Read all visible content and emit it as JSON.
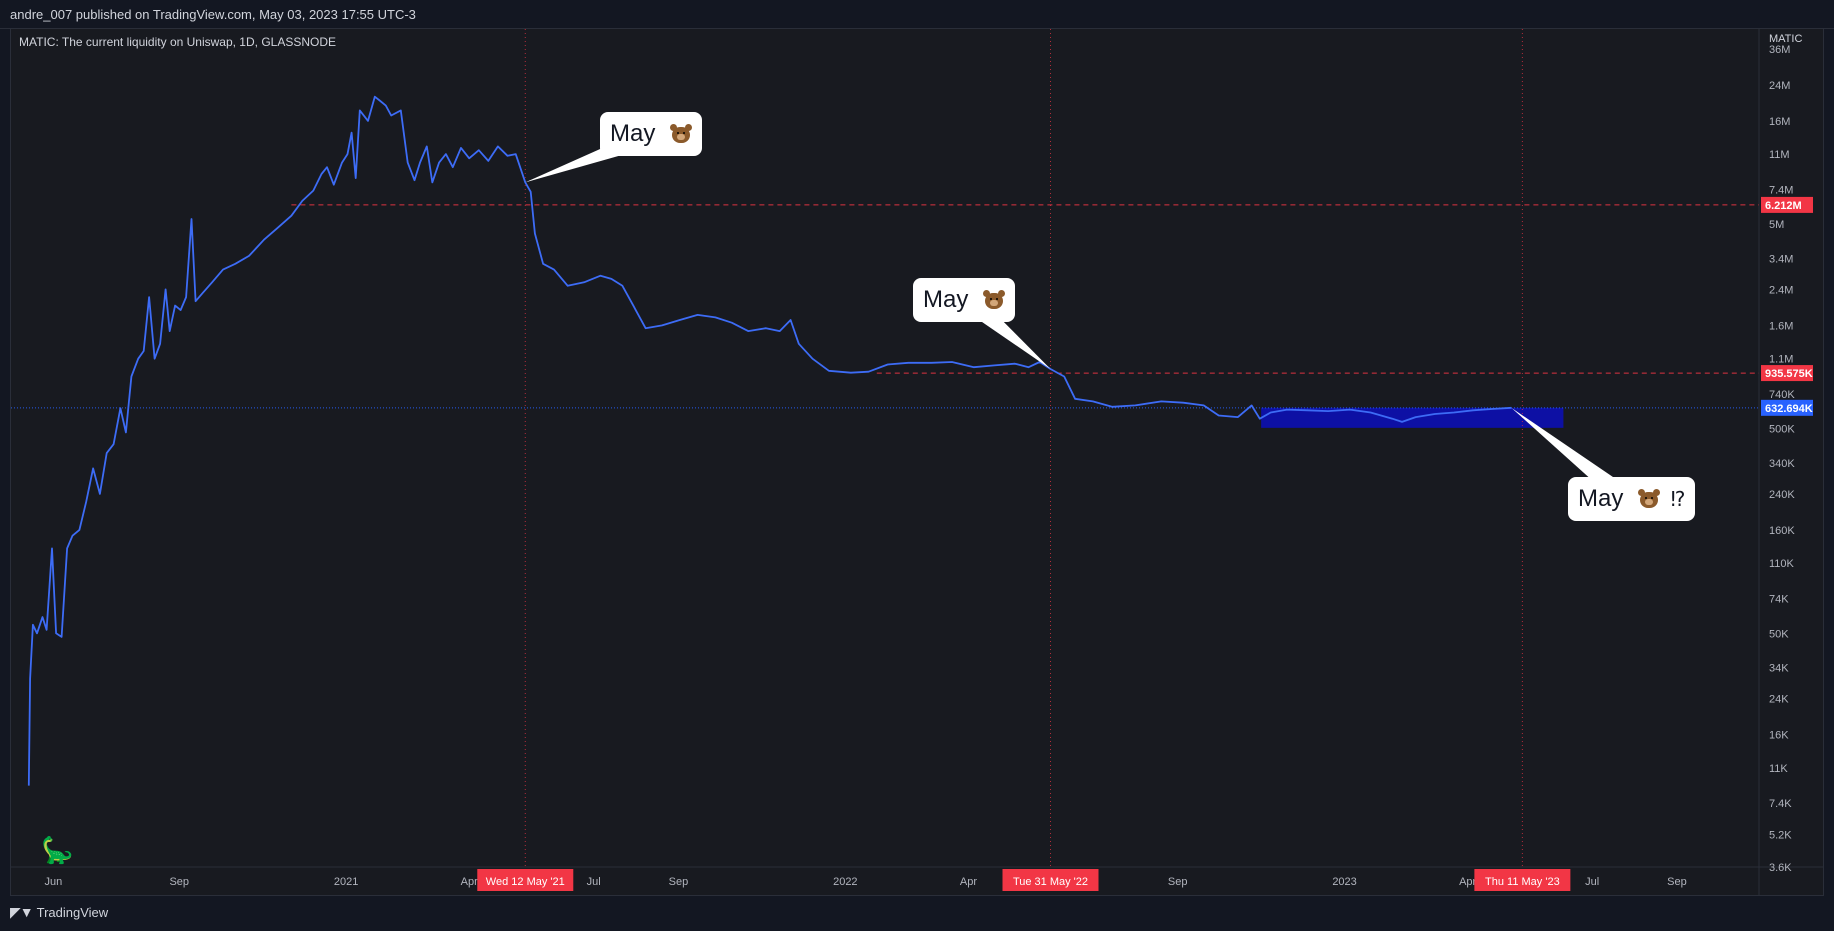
{
  "header": {
    "publish_info": "andre_007 published on TradingView.com, May 03, 2023 17:55 UTC-3"
  },
  "legend": {
    "title": "MATIC: The current liquidity on Uniswap, 1D, GLASSNODE"
  },
  "footer": {
    "brand": "TradingView"
  },
  "colors": {
    "line": "#3d6cf6",
    "red": "#f23645",
    "blue_label": "#2962ff",
    "box": "#0c0fb3",
    "grid": "#2a2e39"
  },
  "callouts": [
    {
      "text": "May",
      "suffix": ""
    },
    {
      "text": "May",
      "suffix": ""
    },
    {
      "text": "May",
      "suffix": "⁉"
    }
  ],
  "chart_data": {
    "type": "line",
    "title": "MATIC: The current liquidity on Uniswap, 1D, GLASSNODE",
    "ylabel": "MATIC",
    "y_scale": "log",
    "ylim": [
      3600,
      45000000
    ],
    "xlim": [
      "2020-05-01",
      "2023-10-31"
    ],
    "x_ticks": [
      "Jun",
      "Sep",
      "2021",
      "Apr",
      "Jul",
      "Sep",
      "2022",
      "Apr",
      "Sep",
      "2023",
      "Apr",
      "Jul",
      "Sep"
    ],
    "x_tick_dates": [
      "2020-06-01",
      "2020-09-01",
      "2021-01-01",
      "2021-04-01",
      "2021-07-01",
      "2021-09-01",
      "2022-01-01",
      "2022-04-01",
      "2022-09-01",
      "2023-01-01",
      "2023-04-01",
      "2023-07-01",
      "2023-09-01"
    ],
    "y_ticks": [
      {
        "label": "36M",
        "value": 36000000
      },
      {
        "label": "24M",
        "value": 24000000
      },
      {
        "label": "16M",
        "value": 16000000
      },
      {
        "label": "11M",
        "value": 11000000
      },
      {
        "label": "7.4M",
        "value": 7400000
      },
      {
        "label": "5M",
        "value": 5000000
      },
      {
        "label": "3.4M",
        "value": 3400000
      },
      {
        "label": "2.4M",
        "value": 2400000
      },
      {
        "label": "1.6M",
        "value": 1600000
      },
      {
        "label": "1.1M",
        "value": 1100000
      },
      {
        "label": "740K",
        "value": 740000
      },
      {
        "label": "500K",
        "value": 500000
      },
      {
        "label": "340K",
        "value": 340000
      },
      {
        "label": "240K",
        "value": 240000
      },
      {
        "label": "160K",
        "value": 160000
      },
      {
        "label": "110K",
        "value": 110000
      },
      {
        "label": "74K",
        "value": 74000
      },
      {
        "label": "50K",
        "value": 50000
      },
      {
        "label": "34K",
        "value": 34000
      },
      {
        "label": "24K",
        "value": 24000
      },
      {
        "label": "16K",
        "value": 16000
      },
      {
        "label": "11K",
        "value": 11000
      },
      {
        "label": "7.4K",
        "value": 7400
      },
      {
        "label": "5.2K",
        "value": 5200
      },
      {
        "label": "3.6K",
        "value": 3600
      }
    ],
    "series": [
      {
        "color": "#3d6cf6",
        "points": [
          [
            "2020-05-14",
            9000
          ],
          [
            "2020-05-15",
            30000
          ],
          [
            "2020-05-17",
            55000
          ],
          [
            "2020-05-20",
            50000
          ],
          [
            "2020-05-24",
            60000
          ],
          [
            "2020-05-27",
            52000
          ],
          [
            "2020-05-31",
            130000
          ],
          [
            "2020-06-03",
            50000
          ],
          [
            "2020-06-07",
            48000
          ],
          [
            "2020-06-11",
            130000
          ],
          [
            "2020-06-15",
            150000
          ],
          [
            "2020-06-20",
            160000
          ],
          [
            "2020-06-25",
            220000
          ],
          [
            "2020-06-30",
            320000
          ],
          [
            "2020-07-05",
            240000
          ],
          [
            "2020-07-10",
            380000
          ],
          [
            "2020-07-15",
            420000
          ],
          [
            "2020-07-20",
            630000
          ],
          [
            "2020-07-24",
            480000
          ],
          [
            "2020-07-28",
            900000
          ],
          [
            "2020-08-02",
            1100000
          ],
          [
            "2020-08-06",
            1200000
          ],
          [
            "2020-08-10",
            2200000
          ],
          [
            "2020-08-14",
            1100000
          ],
          [
            "2020-08-18",
            1300000
          ],
          [
            "2020-08-22",
            2400000
          ],
          [
            "2020-08-25",
            1500000
          ],
          [
            "2020-08-29",
            2000000
          ],
          [
            "2020-09-02",
            1900000
          ],
          [
            "2020-09-06",
            2200000
          ],
          [
            "2020-09-10",
            5300000
          ],
          [
            "2020-09-13",
            2100000
          ],
          [
            "2020-09-18",
            2300000
          ],
          [
            "2020-09-25",
            2600000
          ],
          [
            "2020-10-03",
            3000000
          ],
          [
            "2020-10-12",
            3200000
          ],
          [
            "2020-10-22",
            3500000
          ],
          [
            "2020-11-02",
            4200000
          ],
          [
            "2020-11-12",
            4800000
          ],
          [
            "2020-11-22",
            5500000
          ],
          [
            "2020-11-30",
            6500000
          ],
          [
            "2020-12-08",
            7300000
          ],
          [
            "2020-12-14",
            8800000
          ],
          [
            "2020-12-18",
            9500000
          ],
          [
            "2020-12-23",
            7800000
          ],
          [
            "2020-12-29",
            10000000
          ],
          [
            "2021-01-02",
            11000000
          ],
          [
            "2021-01-05",
            14000000
          ],
          [
            "2021-01-08",
            8400000
          ],
          [
            "2021-01-11",
            18000000
          ],
          [
            "2021-01-17",
            16000000
          ],
          [
            "2021-01-22",
            21000000
          ],
          [
            "2021-01-26",
            20000000
          ],
          [
            "2021-01-30",
            19000000
          ],
          [
            "2021-02-03",
            17000000
          ],
          [
            "2021-02-10",
            18000000
          ],
          [
            "2021-02-15",
            10000000
          ],
          [
            "2021-02-20",
            8200000
          ],
          [
            "2021-02-24",
            10000000
          ],
          [
            "2021-03-01",
            12000000
          ],
          [
            "2021-03-05",
            8000000
          ],
          [
            "2021-03-10",
            10000000
          ],
          [
            "2021-03-15",
            11000000
          ],
          [
            "2021-03-20",
            9500000
          ],
          [
            "2021-03-26",
            11800000
          ],
          [
            "2021-04-01",
            10500000
          ],
          [
            "2021-04-08",
            11500000
          ],
          [
            "2021-04-15",
            10200000
          ],
          [
            "2021-04-22",
            12000000
          ],
          [
            "2021-04-29",
            10800000
          ],
          [
            "2021-05-05",
            11000000
          ],
          [
            "2021-05-12",
            8000000
          ],
          [
            "2021-05-16",
            7200000
          ],
          [
            "2021-05-19",
            4500000
          ],
          [
            "2021-05-25",
            3200000
          ],
          [
            "2021-06-02",
            3000000
          ],
          [
            "2021-06-12",
            2500000
          ],
          [
            "2021-06-24",
            2600000
          ],
          [
            "2021-07-06",
            2800000
          ],
          [
            "2021-07-14",
            2700000
          ],
          [
            "2021-07-22",
            2500000
          ],
          [
            "2021-07-30",
            2000000
          ],
          [
            "2021-08-08",
            1550000
          ],
          [
            "2021-08-20",
            1600000
          ],
          [
            "2021-09-02",
            1700000
          ],
          [
            "2021-09-15",
            1800000
          ],
          [
            "2021-09-28",
            1750000
          ],
          [
            "2021-10-10",
            1650000
          ],
          [
            "2021-10-22",
            1500000
          ],
          [
            "2021-11-04",
            1550000
          ],
          [
            "2021-11-14",
            1500000
          ],
          [
            "2021-11-22",
            1700000
          ],
          [
            "2021-11-28",
            1300000
          ],
          [
            "2021-12-08",
            1100000
          ],
          [
            "2021-12-20",
            960000
          ],
          [
            "2022-01-05",
            940000
          ],
          [
            "2022-01-18",
            950000
          ],
          [
            "2022-02-01",
            1030000
          ],
          [
            "2022-02-16",
            1050000
          ],
          [
            "2022-03-05",
            1050000
          ],
          [
            "2022-03-20",
            1060000
          ],
          [
            "2022-04-05",
            1000000
          ],
          [
            "2022-04-20",
            1020000
          ],
          [
            "2022-05-05",
            1040000
          ],
          [
            "2022-05-15",
            1000000
          ],
          [
            "2022-05-23",
            1060000
          ],
          [
            "2022-05-31",
            980000
          ],
          [
            "2022-06-10",
            900000
          ],
          [
            "2022-06-18",
            700000
          ],
          [
            "2022-07-01",
            680000
          ],
          [
            "2022-07-15",
            640000
          ],
          [
            "2022-08-01",
            650000
          ],
          [
            "2022-08-20",
            680000
          ],
          [
            "2022-09-05",
            670000
          ],
          [
            "2022-09-20",
            650000
          ],
          [
            "2022-10-01",
            580000
          ],
          [
            "2022-10-15",
            570000
          ],
          [
            "2022-10-25",
            650000
          ],
          [
            "2022-10-31",
            560000
          ],
          [
            "2022-11-08",
            600000
          ],
          [
            "2022-11-20",
            620000
          ],
          [
            "2022-12-05",
            615000
          ],
          [
            "2022-12-20",
            610000
          ],
          [
            "2023-01-05",
            620000
          ],
          [
            "2023-01-20",
            600000
          ],
          [
            "2023-02-05",
            560000
          ],
          [
            "2023-02-12",
            540000
          ],
          [
            "2023-02-22",
            570000
          ],
          [
            "2023-03-08",
            590000
          ],
          [
            "2023-03-22",
            600000
          ],
          [
            "2023-04-05",
            615000
          ],
          [
            "2023-04-20",
            625000
          ],
          [
            "2023-05-03",
            632694
          ]
        ]
      }
    ],
    "levels": [
      {
        "label": "6.212M",
        "value": 6212000,
        "start": "2020-11-22",
        "style": "dashed",
        "color": "#f23645"
      },
      {
        "label": "935.575K",
        "value": 935575,
        "start": "2022-01-24",
        "style": "dashed",
        "color": "#f23645"
      },
      {
        "label": "632.694K",
        "value": 632694,
        "start": "2020-05-01",
        "style": "dotted",
        "color": "#2962ff"
      }
    ],
    "markers": [
      {
        "label": "Wed 12 May '21",
        "date": "2021-05-12"
      },
      {
        "label": "Tue 31 May '22",
        "date": "2022-05-31"
      },
      {
        "label": "Thu 11 May '23",
        "date": "2023-05-11"
      }
    ],
    "box": {
      "from": "2022-11-01",
      "to": "2023-06-10",
      "low": 505000,
      "high": 632694,
      "color": "#0c0fb3"
    }
  }
}
